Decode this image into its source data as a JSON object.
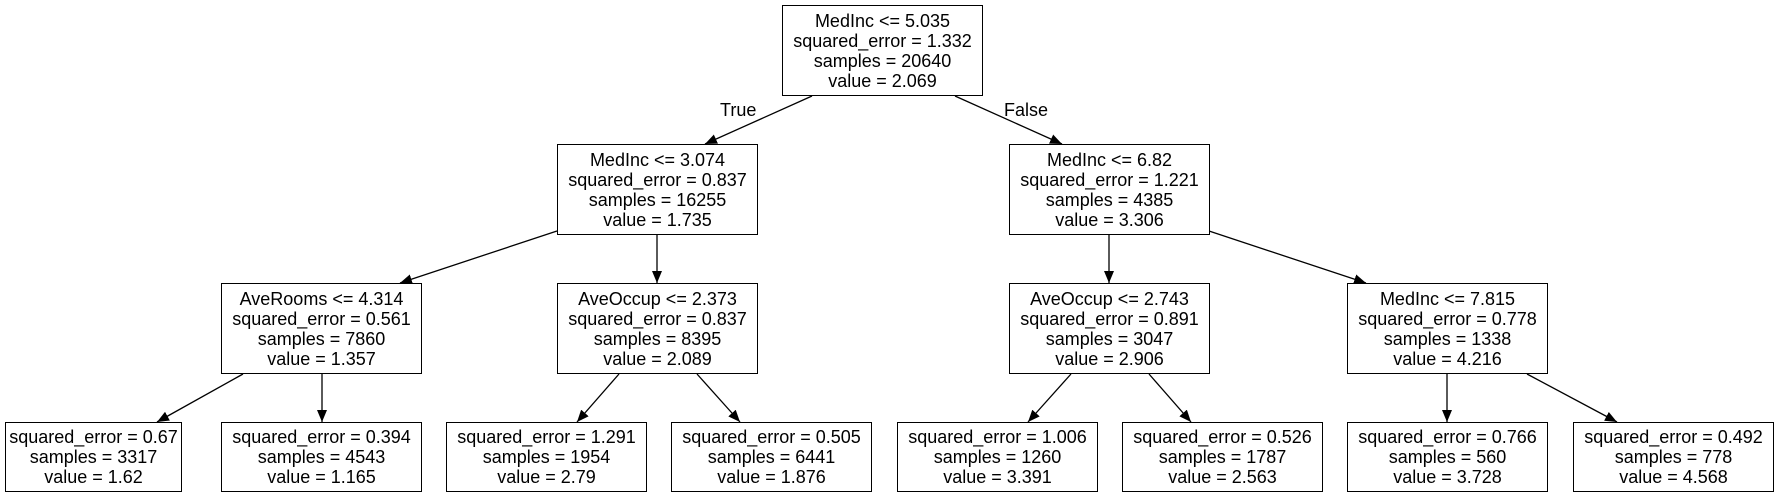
{
  "diagram": {
    "nodes": [
      {
        "id": "n0",
        "lines": [
          "MedInc <= 5.035",
          "squared_error = 1.332",
          "samples = 20640",
          "value = 2.069"
        ]
      },
      {
        "id": "n1",
        "lines": [
          "MedInc <= 3.074",
          "squared_error = 0.837",
          "samples = 16255",
          "value = 1.735"
        ]
      },
      {
        "id": "n2",
        "lines": [
          "MedInc <= 6.82",
          "squared_error = 1.221",
          "samples = 4385",
          "value = 3.306"
        ]
      },
      {
        "id": "n3",
        "lines": [
          "AveRooms <= 4.314",
          "squared_error = 0.561",
          "samples = 7860",
          "value = 1.357"
        ]
      },
      {
        "id": "n4",
        "lines": [
          "AveOccup <= 2.373",
          "squared_error = 0.837",
          "samples = 8395",
          "value = 2.089"
        ]
      },
      {
        "id": "n5",
        "lines": [
          "AveOccup <= 2.743",
          "squared_error = 0.891",
          "samples = 3047",
          "value = 2.906"
        ]
      },
      {
        "id": "n6",
        "lines": [
          "MedInc <= 7.815",
          "squared_error = 0.778",
          "samples = 1338",
          "value = 4.216"
        ]
      },
      {
        "id": "n7",
        "lines": [
          "squared_error = 0.67",
          "samples = 3317",
          "value = 1.62"
        ]
      },
      {
        "id": "n8",
        "lines": [
          "squared_error = 0.394",
          "samples = 4543",
          "value = 1.165"
        ]
      },
      {
        "id": "n9",
        "lines": [
          "squared_error = 1.291",
          "samples = 1954",
          "value = 2.79"
        ]
      },
      {
        "id": "n10",
        "lines": [
          "squared_error = 0.505",
          "samples = 6441",
          "value = 1.876"
        ]
      },
      {
        "id": "n11",
        "lines": [
          "squared_error = 1.006",
          "samples = 1260",
          "value = 3.391"
        ]
      },
      {
        "id": "n12",
        "lines": [
          "squared_error = 0.526",
          "samples = 1787",
          "value = 2.563"
        ]
      },
      {
        "id": "n13",
        "lines": [
          "squared_error = 0.766",
          "samples = 560",
          "value = 3.728"
        ]
      },
      {
        "id": "n14",
        "lines": [
          "squared_error = 0.492",
          "samples = 778",
          "value = 4.568"
        ]
      }
    ],
    "edges": [
      {
        "from": "n0",
        "to": "n1",
        "label": "True"
      },
      {
        "from": "n0",
        "to": "n2",
        "label": "False"
      },
      {
        "from": "n1",
        "to": "n3"
      },
      {
        "from": "n1",
        "to": "n4"
      },
      {
        "from": "n2",
        "to": "n5"
      },
      {
        "from": "n2",
        "to": "n6"
      },
      {
        "from": "n3",
        "to": "n7"
      },
      {
        "from": "n3",
        "to": "n8"
      },
      {
        "from": "n4",
        "to": "n9"
      },
      {
        "from": "n4",
        "to": "n10"
      },
      {
        "from": "n5",
        "to": "n11"
      },
      {
        "from": "n5",
        "to": "n12"
      },
      {
        "from": "n6",
        "to": "n13"
      },
      {
        "from": "n6",
        "to": "n14"
      }
    ]
  }
}
